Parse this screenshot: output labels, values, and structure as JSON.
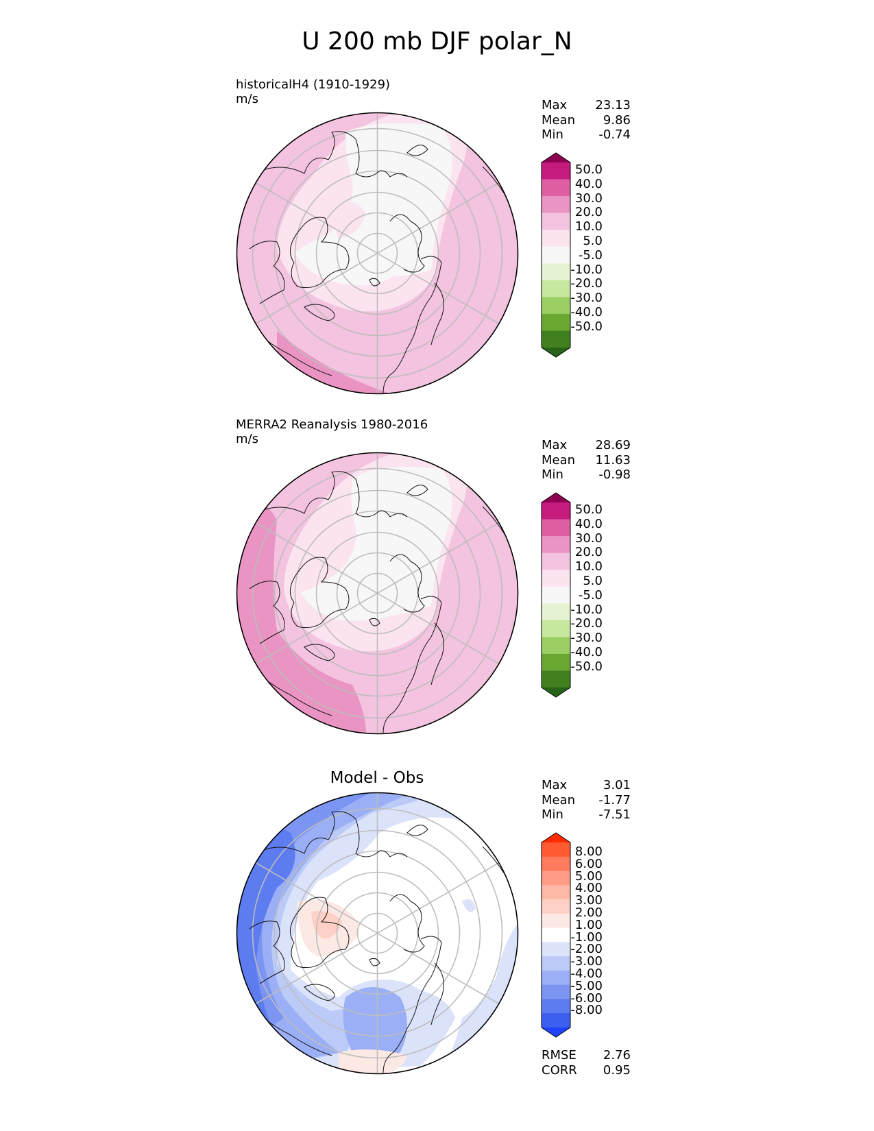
{
  "title": "U 200 mb DJF polar_N",
  "panels": [
    {
      "id": "test",
      "name": "historicalH4 (1910-1929)",
      "units": "m/s",
      "stats": [
        {
          "label": "Max",
          "value": "23.13"
        },
        {
          "label": "Mean",
          "value": "9.86"
        },
        {
          "label": "Min",
          "value": "-0.74"
        }
      ]
    },
    {
      "id": "reference",
      "name": "MERRA2 Reanalysis 1980-2016",
      "units": "m/s",
      "stats": [
        {
          "label": "Max",
          "value": "28.69"
        },
        {
          "label": "Mean",
          "value": "11.63"
        },
        {
          "label": "Min",
          "value": "-0.98"
        }
      ]
    },
    {
      "id": "difference",
      "name": "Model - Obs",
      "stats": [
        {
          "label": "Max",
          "value": "3.01"
        },
        {
          "label": "Mean",
          "value": "-1.77"
        },
        {
          "label": "Min",
          "value": "-7.51"
        }
      ],
      "metrics": [
        {
          "label": "RMSE",
          "value": "2.76"
        },
        {
          "label": "CORR",
          "value": "0.95"
        }
      ]
    }
  ],
  "colorbars": {
    "field": {
      "labels": [
        "50.0",
        "40.0",
        "30.0",
        "20.0",
        "10.0",
        "5.0",
        "-5.0",
        "-10.0",
        "-20.0",
        "-30.0",
        "-40.0",
        "-50.0"
      ],
      "colors": [
        "#8e0152",
        "#c51b7d",
        "#de5fa4",
        "#e994c2",
        "#f3c3df",
        "#fbe3ef",
        "#f7f7f7",
        "#e6f3d3",
        "#c7e89f",
        "#9ccf63",
        "#6aa832",
        "#41801f",
        "#276419"
      ]
    },
    "diff": {
      "labels": [
        "8.00",
        "6.00",
        "5.00",
        "4.00",
        "3.00",
        "2.00",
        "1.00",
        "-1.00",
        "-2.00",
        "-3.00",
        "-4.00",
        "-5.00",
        "-6.00",
        "-8.00"
      ],
      "colors": [
        "#ff2a00",
        "#ff5a32",
        "#ff7b5e",
        "#ff9b86",
        "#ffb9a9",
        "#ffd1c6",
        "#fde9e4",
        "#ffffff",
        "#dbe3fb",
        "#bccaf8",
        "#9aaff5",
        "#7c95f3",
        "#5d7cf0",
        "#3c5ff1",
        "#1f44ff"
      ]
    }
  }
}
